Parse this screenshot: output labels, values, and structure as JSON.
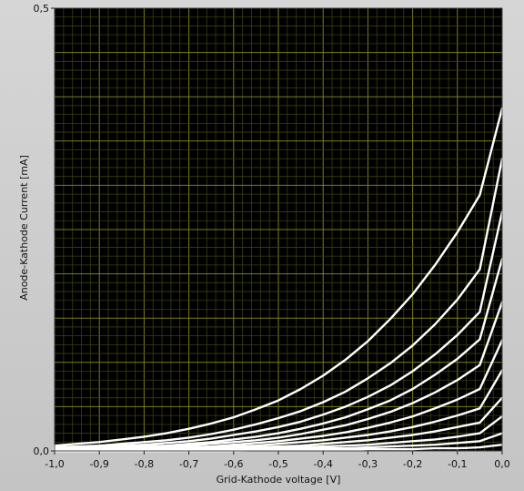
{
  "chart_data": {
    "type": "line",
    "title": "",
    "xlabel": "Grid-Kathode  voltage [V]",
    "ylabel": "Anode-Kathode Current [mA]",
    "xlim": [
      -1.0,
      0.0
    ],
    "ylim": [
      0.0,
      0.5
    ],
    "x_ticks": [
      "-1,0",
      "-0,9",
      "-0,8",
      "-0,7",
      "-0,6",
      "-0,5",
      "-0,4",
      "-0,3",
      "-0,2",
      "-0,1",
      "0,0"
    ],
    "y_ticks": [
      "0,0",
      "0,5"
    ],
    "grid": true,
    "colors": {
      "plot_background": "#000000",
      "grid": "#7a7f1a",
      "grid_minor": "#3b3f0c",
      "trace": "#ffffff",
      "frame": "#c9c9c9"
    },
    "x": [
      -1.0,
      -0.95,
      -0.9,
      -0.85,
      -0.8,
      -0.75,
      -0.7,
      -0.65,
      -0.6,
      -0.55,
      -0.5,
      -0.45,
      -0.4,
      -0.35,
      -0.3,
      -0.25,
      -0.2,
      -0.15,
      -0.1,
      -0.05,
      0.0
    ],
    "series": [
      {
        "values": [
          0.006,
          0.008,
          0.01,
          0.013,
          0.016,
          0.02,
          0.025,
          0.031,
          0.038,
          0.047,
          0.057,
          0.07,
          0.085,
          0.103,
          0.124,
          0.149,
          0.177,
          0.21,
          0.247,
          0.289,
          0.387
        ]
      },
      {
        "values": [
          0.004,
          0.005,
          0.006,
          0.008,
          0.01,
          0.012,
          0.015,
          0.019,
          0.024,
          0.03,
          0.037,
          0.045,
          0.055,
          0.067,
          0.082,
          0.099,
          0.119,
          0.143,
          0.171,
          0.205,
          0.33
        ]
      },
      {
        "values": [
          0.003,
          0.004,
          0.005,
          0.006,
          0.007,
          0.009,
          0.011,
          0.014,
          0.018,
          0.022,
          0.027,
          0.033,
          0.041,
          0.05,
          0.061,
          0.074,
          0.09,
          0.109,
          0.131,
          0.157,
          0.27
        ]
      },
      {
        "values": [
          0.002,
          0.003,
          0.003,
          0.004,
          0.005,
          0.006,
          0.008,
          0.01,
          0.013,
          0.016,
          0.02,
          0.025,
          0.031,
          0.038,
          0.047,
          0.057,
          0.07,
          0.086,
          0.104,
          0.126,
          0.217
        ]
      },
      {
        "values": [
          0.001,
          0.002,
          0.002,
          0.003,
          0.004,
          0.005,
          0.006,
          0.008,
          0.01,
          0.012,
          0.015,
          0.019,
          0.024,
          0.029,
          0.036,
          0.044,
          0.054,
          0.066,
          0.08,
          0.097,
          0.168
        ]
      },
      {
        "values": [
          0.001,
          0.001,
          0.002,
          0.002,
          0.003,
          0.003,
          0.004,
          0.005,
          0.007,
          0.009,
          0.011,
          0.014,
          0.017,
          0.021,
          0.026,
          0.032,
          0.039,
          0.048,
          0.058,
          0.07,
          0.125
        ]
      },
      {
        "values": [
          0.001,
          0.001,
          0.001,
          0.001,
          0.002,
          0.002,
          0.003,
          0.004,
          0.005,
          0.006,
          0.008,
          0.01,
          0.012,
          0.015,
          0.018,
          0.022,
          0.027,
          0.033,
          0.04,
          0.048,
          0.091
        ]
      },
      {
        "values": [
          0.0,
          0.001,
          0.001,
          0.001,
          0.001,
          0.001,
          0.002,
          0.002,
          0.003,
          0.004,
          0.005,
          0.006,
          0.008,
          0.01,
          0.012,
          0.015,
          0.018,
          0.022,
          0.027,
          0.032,
          0.06
        ]
      },
      {
        "values": [
          0.0,
          0.0,
          0.0,
          0.001,
          0.001,
          0.001,
          0.001,
          0.001,
          0.002,
          0.002,
          0.003,
          0.004,
          0.005,
          0.006,
          0.007,
          0.009,
          0.011,
          0.013,
          0.016,
          0.02,
          0.039
        ]
      },
      {
        "values": [
          0.0,
          0.0,
          0.0,
          0.0,
          0.0,
          0.0,
          0.001,
          0.001,
          0.001,
          0.001,
          0.002,
          0.002,
          0.003,
          0.003,
          0.004,
          0.005,
          0.006,
          0.007,
          0.009,
          0.011,
          0.02
        ]
      },
      {
        "values": [
          0.0,
          0.0,
          0.0,
          0.0,
          0.0,
          0.0,
          0.0,
          0.0,
          0.0,
          0.001,
          0.001,
          0.001,
          0.001,
          0.001,
          0.002,
          0.002,
          0.002,
          0.003,
          0.003,
          0.004,
          0.007
        ]
      }
    ]
  }
}
